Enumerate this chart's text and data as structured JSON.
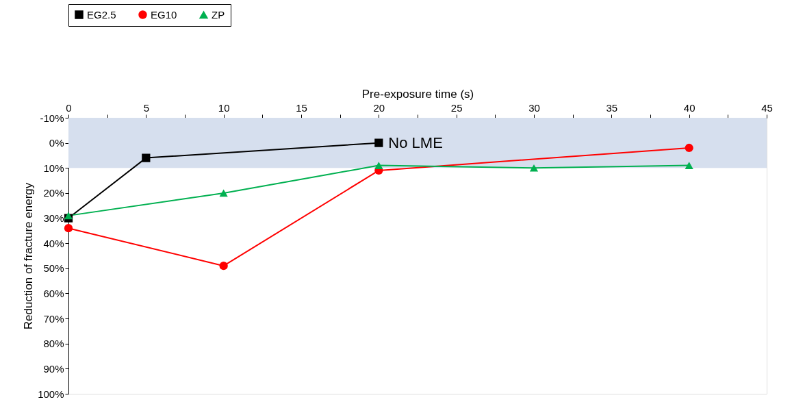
{
  "chart_data": {
    "type": "line",
    "xlabel": "Pre-exposure time (s)",
    "ylabel": "Reduction of fracture energy",
    "xlim": [
      0,
      45
    ],
    "xticks": [
      0,
      {
        "value": 2.5,
        "label": null
      },
      5,
      {
        "value": 7.5,
        "label": null
      },
      10,
      {
        "value": 12.5,
        "label": null
      },
      15,
      {
        "value": 17.5,
        "label": null
      },
      20,
      {
        "value": 22.5,
        "label": null
      },
      25,
      {
        "value": 27.5,
        "label": null
      },
      30,
      {
        "value": 32.5,
        "label": null
      },
      35,
      {
        "value": 37.5,
        "label": null
      },
      40,
      {
        "value": 42.5,
        "label": null
      },
      45
    ],
    "ylim": [
      100,
      -10
    ],
    "yticks": [
      {
        "value": -10,
        "label": "-10%"
      },
      {
        "value": 0,
        "label": "0%"
      },
      {
        "value": 10,
        "label": "10%"
      },
      {
        "value": 20,
        "label": "20%"
      },
      {
        "value": 30,
        "label": "30%"
      },
      {
        "value": 40,
        "label": "40%"
      },
      {
        "value": 50,
        "label": "50%"
      },
      {
        "value": 60,
        "label": "60%"
      },
      {
        "value": 70,
        "label": "70%"
      },
      {
        "value": 80,
        "label": "80%"
      },
      {
        "value": 90,
        "label": "90%"
      },
      {
        "value": 100,
        "label": "100%"
      }
    ],
    "grid": false,
    "legend": "top",
    "line_style": "solid",
    "series": [
      {
        "name": "EG2.5",
        "color": "#000000",
        "marker": "square",
        "x": [
          0,
          5,
          20
        ],
        "values": [
          30,
          6,
          0
        ]
      },
      {
        "name": "EG10",
        "color": "#ff0000",
        "marker": "circle",
        "x": [
          0,
          10,
          20,
          40
        ],
        "values": [
          34,
          49,
          11,
          2
        ]
      },
      {
        "name": "ZP",
        "color": "#00b050",
        "marker": "triangle",
        "x": [
          0,
          10,
          20,
          30,
          40
        ],
        "values": [
          29,
          20,
          9,
          10,
          9
        ]
      }
    ],
    "bands": [
      {
        "axis": "y",
        "from": -10,
        "to": 10,
        "color": "#d6dfee"
      }
    ],
    "annotations": [
      {
        "text": "No LME",
        "x": 20,
        "y": 0
      }
    ]
  }
}
